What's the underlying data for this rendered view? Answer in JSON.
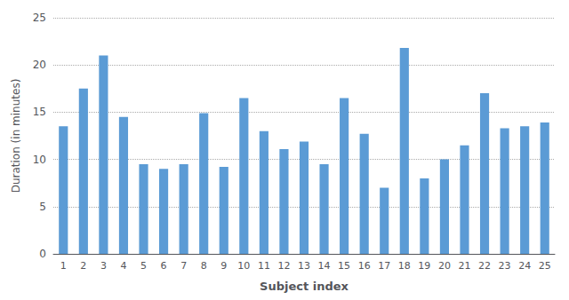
{
  "chart_data": {
    "type": "bar",
    "categories": [
      "1",
      "2",
      "3",
      "4",
      "5",
      "6",
      "7",
      "8",
      "9",
      "10",
      "11",
      "12",
      "13",
      "14",
      "15",
      "16",
      "17",
      "18",
      "19",
      "20",
      "21",
      "22",
      "23",
      "24",
      "25"
    ],
    "values": [
      13.5,
      17.5,
      21.0,
      14.5,
      9.5,
      9.0,
      9.5,
      14.9,
      9.2,
      16.5,
      13.0,
      11.1,
      11.9,
      9.5,
      16.5,
      12.7,
      7.0,
      21.8,
      8.0,
      10.0,
      11.5,
      17.0,
      13.3,
      13.5,
      13.9
    ],
    "color": "#5b9bd5",
    "xlabel": "Subject index",
    "ylabel": "Duration (in minutes)",
    "ylim": [
      0,
      25
    ],
    "yticks": [
      0,
      5,
      10,
      15,
      20,
      25
    ],
    "grid": true
  }
}
